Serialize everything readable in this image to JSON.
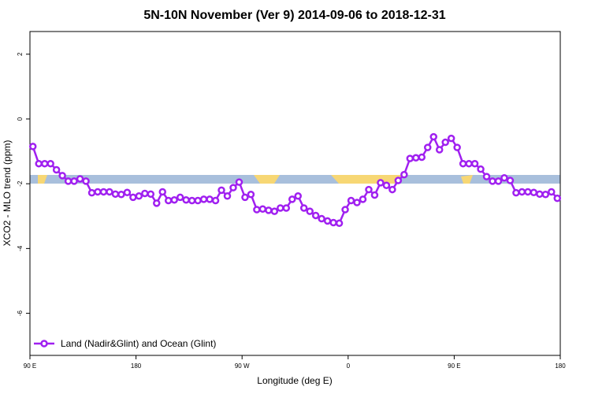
{
  "chart_data": {
    "type": "line",
    "title": "5N-10N November (Ver 9)   2014-09-06 to 2018-12-31",
    "x_label": "Longitude (deg E)",
    "y_label": "XCO2 - MLO trend (ppm)",
    "x": [
      92.5,
      97.5,
      102.5,
      107.5,
      112.5,
      117.5,
      122.5,
      127.5,
      132.5,
      137.5,
      142.5,
      147.5,
      152.5,
      157.5,
      162.5,
      167.5,
      172.5,
      177.5,
      182.5,
      187.5,
      192.5,
      197.5,
      202.5,
      207.5,
      212.5,
      217.5,
      222.5,
      227.5,
      232.5,
      237.5,
      242.5,
      247.5,
      252.5,
      257.5,
      262.5,
      267.5,
      272.5,
      277.5,
      282.5,
      287.5,
      292.5,
      297.5,
      302.5,
      307.5,
      312.5,
      317.5,
      322.5,
      327.5,
      332.5,
      337.5,
      342.5,
      347.5,
      352.5,
      357.5,
      362.5,
      367.5,
      372.5,
      377.5,
      382.5,
      387.5,
      392.5,
      397.5,
      402.5,
      407.5,
      412.5,
      417.5,
      422.5,
      427.5,
      432.5,
      437.5,
      442.5,
      447.5,
      452.5,
      457.5,
      462.5,
      467.5,
      472.5,
      477.5,
      482.5,
      487.5,
      492.5,
      497.5,
      502.5,
      507.5,
      512.5,
      517.5,
      522.5,
      527.5,
      532.5,
      537.5
    ],
    "series": [
      {
        "name": "Land (Nadir&Glint) and Ocean (Glint)",
        "color": "#a020f0",
        "values": [
          -0.85,
          -1.38,
          -1.38,
          -1.38,
          -1.57,
          -1.75,
          -1.92,
          -1.92,
          -1.85,
          -1.92,
          -2.28,
          -2.25,
          -2.25,
          -2.25,
          -2.32,
          -2.33,
          -2.27,
          -2.42,
          -2.38,
          -2.3,
          -2.32,
          -2.6,
          -2.25,
          -2.52,
          -2.5,
          -2.42,
          -2.5,
          -2.52,
          -2.52,
          -2.48,
          -2.48,
          -2.52,
          -2.2,
          -2.38,
          -2.12,
          -1.95,
          -2.42,
          -2.33,
          -2.8,
          -2.78,
          -2.82,
          -2.85,
          -2.75,
          -2.75,
          -2.48,
          -2.38,
          -2.75,
          -2.85,
          -2.98,
          -3.08,
          -3.15,
          -3.2,
          -3.22,
          -2.8,
          -2.52,
          -2.58,
          -2.48,
          -2.18,
          -2.35,
          -1.97,
          -2.05,
          -2.18,
          -1.9,
          -1.72,
          -1.22,
          -1.2,
          -1.18,
          -0.88,
          -0.55,
          -0.95,
          -0.72,
          -0.6,
          -0.88,
          -1.38,
          -1.38,
          -1.38,
          -1.55,
          -1.78,
          -1.92,
          -1.92,
          -1.82,
          -1.9,
          -2.28,
          -2.25,
          -2.25,
          -2.27,
          -2.32,
          -2.33,
          -2.25,
          -2.45
        ]
      }
    ],
    "xlim": [
      90,
      540
    ],
    "xticks": [
      {
        "value": 90,
        "label": "90 E"
      },
      180,
      {
        "value": 270,
        "label": "90 W"
      },
      {
        "value": 360,
        "label": "0"
      },
      {
        "value": 450,
        "label": "90 E"
      },
      {
        "value": 540,
        "label": "180"
      }
    ],
    "ylim": [
      -7.3,
      2.7
    ],
    "yticks": [
      2,
      0,
      -2,
      -4,
      -6
    ],
    "legend": "bottom-left"
  }
}
